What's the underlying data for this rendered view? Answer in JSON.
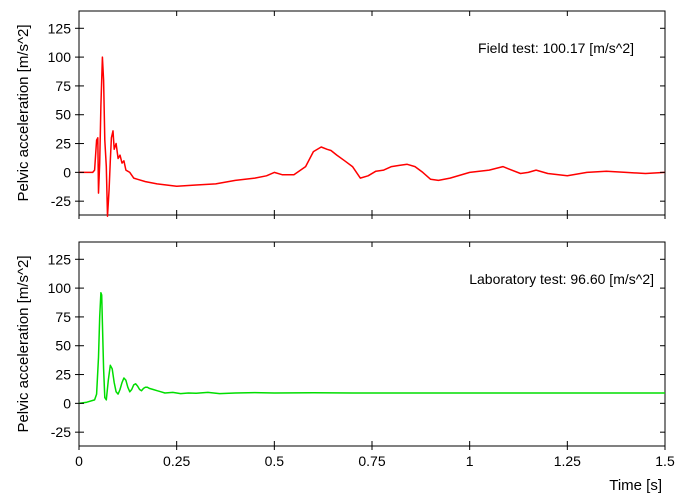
{
  "chart_data": [
    {
      "type": "line",
      "annotation": "Field test: 100.17 [m/s^2]",
      "ylabel": "Pelvic acceleration [m/s^2]",
      "xlabel": "",
      "xlim": [
        0,
        1.5
      ],
      "ylim": [
        -37,
        140
      ],
      "yticks": [
        "-25",
        "0",
        "25",
        "50",
        "75",
        "100",
        "125"
      ],
      "xticks": [
        "0",
        "0.25",
        "0.5",
        "0.75",
        "1",
        "1.25",
        "1.5"
      ],
      "show_xtick_labels": false,
      "grid": false,
      "series": [
        {
          "color": "#ff0000",
          "x": [
            0,
            0.035,
            0.04,
            0.045,
            0.048,
            0.05,
            0.053,
            0.056,
            0.06,
            0.063,
            0.066,
            0.07,
            0.073,
            0.077,
            0.08,
            0.083,
            0.087,
            0.09,
            0.095,
            0.1,
            0.105,
            0.11,
            0.115,
            0.12,
            0.13,
            0.14,
            0.15,
            0.17,
            0.2,
            0.25,
            0.3,
            0.35,
            0.4,
            0.45,
            0.48,
            0.5,
            0.52,
            0.55,
            0.58,
            0.6,
            0.62,
            0.635,
            0.645,
            0.66,
            0.68,
            0.7,
            0.72,
            0.74,
            0.76,
            0.78,
            0.8,
            0.82,
            0.84,
            0.86,
            0.88,
            0.9,
            0.92,
            0.95,
            1.0,
            1.05,
            1.085,
            1.1,
            1.13,
            1.15,
            1.17,
            1.2,
            1.25,
            1.3,
            1.35,
            1.4,
            1.45,
            1.5
          ],
          "y": [
            0,
            0,
            2,
            28,
            30,
            -18,
            8,
            58,
            100,
            80,
            28,
            5,
            -38,
            -15,
            10,
            30,
            36,
            20,
            25,
            12,
            15,
            8,
            10,
            2,
            0,
            -5,
            -6,
            -8,
            -10,
            -12,
            -11,
            -10,
            -7,
            -5,
            -3,
            0,
            -2,
            -2,
            5,
            18,
            22,
            20,
            19,
            15,
            10,
            5,
            -5,
            -3,
            1,
            2,
            5,
            6,
            7,
            5,
            0,
            -6,
            -7,
            -5,
            0,
            2,
            5,
            3,
            -1,
            0,
            2,
            -1,
            -3,
            0,
            1,
            0,
            -1,
            0
          ]
        }
      ]
    },
    {
      "type": "line",
      "annotation": "Laboratory test: 96.60 [m/s^2]",
      "ylabel": "Pelvic acceleration [m/s^2]",
      "xlabel": "Time [s]",
      "xlim": [
        0,
        1.5
      ],
      "ylim": [
        -37,
        140
      ],
      "yticks": [
        "-25",
        "0",
        "25",
        "50",
        "75",
        "100",
        "125"
      ],
      "xticks": [
        "0",
        "0.25",
        "0.5",
        "0.75",
        "1",
        "1.25",
        "1.5"
      ],
      "show_xtick_labels": true,
      "grid": false,
      "series": [
        {
          "color": "#00dd00",
          "x": [
            0,
            0.02,
            0.04,
            0.045,
            0.05,
            0.053,
            0.056,
            0.058,
            0.06,
            0.063,
            0.066,
            0.07,
            0.075,
            0.08,
            0.085,
            0.09,
            0.095,
            0.1,
            0.105,
            0.11,
            0.115,
            0.12,
            0.125,
            0.13,
            0.135,
            0.14,
            0.145,
            0.15,
            0.155,
            0.16,
            0.165,
            0.17,
            0.175,
            0.18,
            0.19,
            0.2,
            0.21,
            0.22,
            0.24,
            0.26,
            0.28,
            0.3,
            0.33,
            0.36,
            0.4,
            0.45,
            0.5,
            0.6,
            0.7,
            0.8,
            1.0,
            1.2,
            1.4,
            1.5
          ],
          "y": [
            0,
            1,
            3,
            8,
            40,
            75,
            96,
            94,
            70,
            30,
            5,
            3,
            20,
            33,
            30,
            18,
            10,
            8,
            12,
            18,
            22,
            20,
            14,
            10,
            12,
            16,
            17,
            15,
            12,
            11,
            13,
            14,
            14,
            13,
            12,
            11,
            10,
            9,
            9.5,
            8.5,
            9,
            8.8,
            9.5,
            8.5,
            9,
            9.3,
            9,
            9.2,
            9,
            9,
            9,
            9,
            9,
            9
          ]
        }
      ]
    }
  ]
}
